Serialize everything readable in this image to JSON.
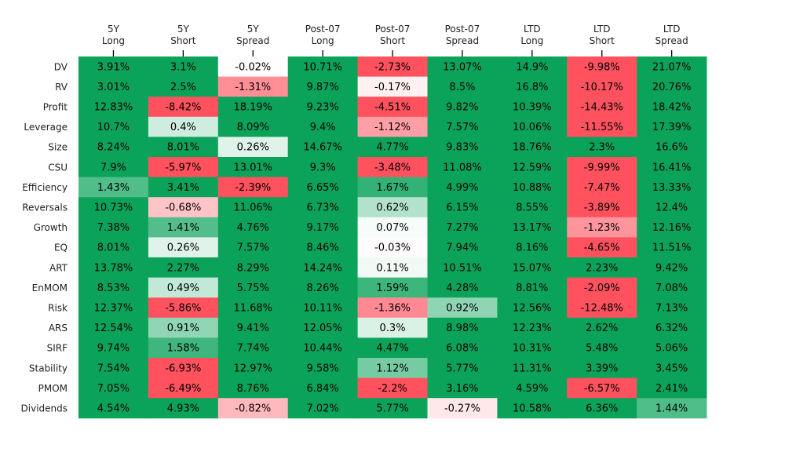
{
  "chart_data": {
    "type": "heatmap",
    "title": "",
    "xlabel": "",
    "ylabel": "",
    "columns": [
      [
        "5Y",
        "Long"
      ],
      [
        "5Y",
        "Short"
      ],
      [
        "5Y",
        "Spread"
      ],
      [
        "Post-07",
        "Long"
      ],
      [
        "Post-07",
        "Short"
      ],
      [
        "Post-07",
        "Spread"
      ],
      [
        "LTD",
        "Long"
      ],
      [
        "LTD",
        "Short"
      ],
      [
        "LTD",
        "Spread"
      ]
    ],
    "rows": [
      "DV",
      "RV",
      "Profit",
      "Leverage",
      "Size",
      "CSU",
      "Efficiency",
      "Reversals",
      "Growth",
      "EQ",
      "ART",
      "EnMOM",
      "Risk",
      "ARS",
      "SIRF",
      "Stability",
      "PMOM",
      "Dividends"
    ],
    "value_suffix": "%",
    "values": [
      [
        3.91,
        3.1,
        -0.02,
        10.71,
        -2.73,
        13.07,
        14.9,
        -9.98,
        21.07
      ],
      [
        3.01,
        2.5,
        -1.31,
        9.87,
        -0.17,
        8.5,
        16.8,
        -10.17,
        20.76
      ],
      [
        12.83,
        -8.42,
        18.19,
        9.23,
        -4.51,
        9.82,
        10.39,
        -14.43,
        18.42
      ],
      [
        10.7,
        0.4,
        8.09,
        9.4,
        -1.12,
        7.57,
        10.06,
        -11.55,
        17.39
      ],
      [
        8.24,
        8.01,
        0.26,
        14.67,
        4.77,
        9.83,
        18.76,
        2.3,
        16.6
      ],
      [
        7.9,
        -5.97,
        13.01,
        9.3,
        -3.48,
        11.08,
        12.59,
        -9.99,
        16.41
      ],
      [
        1.43,
        3.41,
        -2.39,
        6.65,
        1.67,
        4.99,
        10.88,
        -7.47,
        13.33
      ],
      [
        10.73,
        -0.68,
        11.06,
        6.73,
        0.62,
        6.15,
        8.55,
        -3.89,
        12.4
      ],
      [
        7.38,
        1.41,
        4.76,
        9.17,
        0.07,
        7.27,
        13.17,
        -1.23,
        12.16
      ],
      [
        8.01,
        0.26,
        7.57,
        8.46,
        -0.03,
        7.94,
        8.16,
        -4.65,
        11.51
      ],
      [
        13.78,
        2.27,
        8.29,
        14.24,
        0.11,
        10.51,
        15.07,
        2.23,
        9.42
      ],
      [
        8.53,
        0.49,
        5.75,
        8.26,
        1.59,
        4.28,
        8.81,
        -2.09,
        7.08
      ],
      [
        12.37,
        -5.86,
        11.68,
        10.11,
        -1.36,
        0.92,
        12.56,
        -12.48,
        7.13
      ],
      [
        12.54,
        0.91,
        9.41,
        12.05,
        0.3,
        8.98,
        12.23,
        2.62,
        6.32
      ],
      [
        9.74,
        1.58,
        7.74,
        10.44,
        4.47,
        6.08,
        10.31,
        5.48,
        5.06
      ],
      [
        7.54,
        -6.93,
        12.97,
        9.58,
        1.12,
        5.77,
        11.31,
        3.39,
        3.45
      ],
      [
        7.05,
        -6.49,
        8.76,
        6.84,
        -2.2,
        3.16,
        4.59,
        -6.57,
        2.41
      ],
      [
        4.54,
        4.93,
        -0.82,
        7.02,
        5.77,
        -0.27,
        10.58,
        6.36,
        1.44
      ]
    ],
    "colormap": {
      "negative_full": "#ff525e",
      "neutral": "#ffffff",
      "positive_full": "#0ba35a",
      "saturation_abs": 2.0
    },
    "colorbar": false,
    "grid": false,
    "legend": "none"
  }
}
